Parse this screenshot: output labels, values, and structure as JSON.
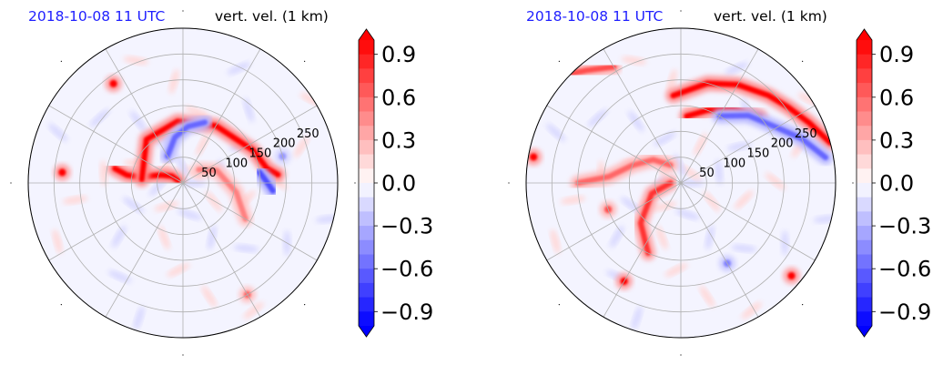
{
  "chart_data": [
    {
      "type": "heatmap",
      "subtype": "polar",
      "title_left": "2018-10-08 11 UTC",
      "title_right": "vert. vel. (1 km)",
      "title_left_color": "#1f1fff",
      "radial_rings": [
        50,
        100,
        150,
        200,
        250,
        300
      ],
      "radial_tick_labels": [
        "50",
        "100",
        "150",
        "200",
        "250"
      ],
      "angular_spokes_deg": [
        0,
        30,
        60,
        90,
        120,
        150,
        180,
        210,
        240,
        270,
        300,
        330
      ],
      "radial_max": 300,
      "grid": true,
      "colormap": "bwr",
      "colorbar": {
        "extend": "both",
        "vmin": -1.0,
        "vmax": 1.0,
        "levels": 20,
        "ticks": [
          0.9,
          0.6,
          0.3,
          0.0,
          -0.3,
          -0.6,
          -0.9
        ],
        "tick_labels": [
          "0.9",
          "0.6",
          "0.3",
          "0.0",
          "−0.3",
          "−0.6",
          "−0.9"
        ]
      },
      "features": [
        {
          "kind": "band",
          "value": 1.0,
          "points": [
            [
              10,
              155
            ],
            [
              25,
              148
            ],
            [
              45,
              160
            ],
            [
              85,
              172
            ],
            [
              110,
              172
            ],
            [
              135,
              168
            ]
          ]
        },
        {
          "kind": "band",
          "value": 1.0,
          "points": [
            [
              80,
              175
            ],
            [
              110,
              130
            ],
            [
              120,
              95
            ],
            [
              128,
              60
            ],
            [
              150,
              25
            ],
            [
              165,
              10
            ],
            [
              185,
              5
            ]
          ]
        },
        {
          "kind": "band",
          "value": -0.6,
          "points": [
            [
              60,
              120
            ],
            [
              90,
              100
            ],
            [
              110,
              85
            ],
            [
              125,
              70
            ]
          ]
        },
        {
          "kind": "band",
          "value": -0.7,
          "points": [
            [
              150,
              8
            ],
            [
              160,
              2
            ],
            [
              175,
              355
            ]
          ]
        },
        {
          "kind": "band",
          "value": 0.5,
          "points": [
            [
              40,
              40
            ],
            [
              70,
              20
            ],
            [
              105,
              350
            ],
            [
              140,
              330
            ]
          ]
        },
        {
          "kind": "blob",
          "value": 1.0,
          "r": 235,
          "theta": 125
        },
        {
          "kind": "blob",
          "value": 1.0,
          "r": 235,
          "theta": 175
        },
        {
          "kind": "blob",
          "value": 0.6,
          "r": 250,
          "theta": 300
        },
        {
          "kind": "blob",
          "value": -0.4,
          "r": 200,
          "theta": 15
        }
      ]
    },
    {
      "type": "heatmap",
      "subtype": "polar",
      "title_left": "2018-10-08 11 UTC",
      "title_right": "vert. vel. (1 km)",
      "title_left_color": "#1f1fff",
      "radial_rings": [
        50,
        100,
        150,
        200,
        250,
        300
      ],
      "radial_tick_labels": [
        "50",
        "100",
        "150",
        "200",
        "250"
      ],
      "angular_spokes_deg": [
        0,
        30,
        60,
        90,
        120,
        150,
        180,
        210,
        240,
        270,
        300,
        330
      ],
      "radial_max": 300,
      "grid": true,
      "colormap": "bwr",
      "colorbar": {
        "extend": "both",
        "vmin": -1.0,
        "vmax": 1.0,
        "levels": 20,
        "ticks": [
          0.9,
          0.6,
          0.3,
          0.0,
          -0.3,
          -0.6,
          -0.9
        ],
        "tick_labels": [
          "0.9",
          "0.6",
          "0.3",
          "0.0",
          "−0.3",
          "−0.6",
          "−0.9"
        ]
      },
      "features": [
        {
          "kind": "band",
          "value": 1.0,
          "points": [
            [
              170,
              95
            ],
            [
              200,
              75
            ],
            [
              220,
              60
            ],
            [
              240,
              45
            ],
            [
              255,
              35
            ],
            [
              275,
              25
            ],
            [
              300,
              15
            ]
          ]
        },
        {
          "kind": "band",
          "value": 1.0,
          "points": [
            [
              130,
              85
            ],
            [
              150,
              70
            ],
            [
              175,
              55
            ],
            [
              200,
              40
            ]
          ]
        },
        {
          "kind": "band",
          "value": -0.6,
          "points": [
            [
              150,
              60
            ],
            [
              185,
              45
            ],
            [
              215,
              30
            ],
            [
              250,
              20
            ],
            [
              285,
              10
            ]
          ]
        },
        {
          "kind": "band",
          "value": 0.8,
          "points": [
            [
              20,
              180
            ],
            [
              60,
              200
            ],
            [
              110,
              225
            ],
            [
              150,
              245
            ]
          ]
        },
        {
          "kind": "band",
          "value": 0.6,
          "points": [
            [
              40,
              120
            ],
            [
              70,
              140
            ],
            [
              100,
              160
            ],
            [
              140,
              175
            ],
            [
              200,
              180
            ]
          ]
        },
        {
          "kind": "band",
          "value": 0.7,
          "points": [
            [
              260,
              120
            ],
            [
              285,
              130
            ],
            [
              300,
              135
            ]
          ]
        },
        {
          "kind": "blob",
          "value": 1.0,
          "r": 280,
          "theta": 320
        },
        {
          "kind": "blob",
          "value": 1.0,
          "r": 220,
          "theta": 240
        },
        {
          "kind": "blob",
          "value": 0.7,
          "r": 150,
          "theta": 200
        },
        {
          "kind": "blob",
          "value": 1.0,
          "r": 290,
          "theta": 170
        },
        {
          "kind": "blob",
          "value": -0.5,
          "r": 180,
          "theta": 300
        }
      ]
    }
  ]
}
